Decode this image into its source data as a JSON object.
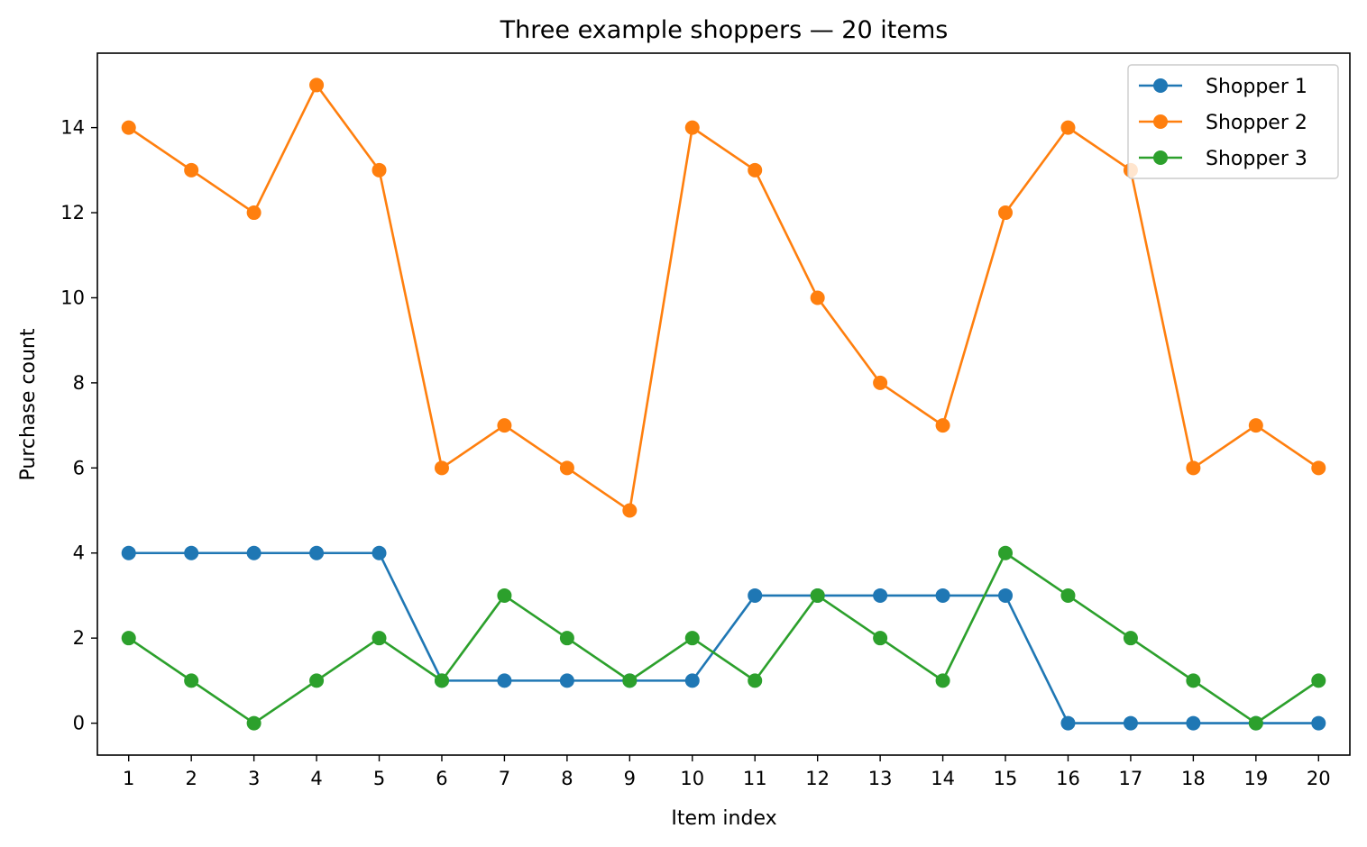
{
  "chart_data": {
    "type": "line",
    "title": "Three example shoppers — 20 items",
    "xlabel": "Item index",
    "ylabel": "Purchase count",
    "x": [
      1,
      2,
      3,
      4,
      5,
      6,
      7,
      8,
      9,
      10,
      11,
      12,
      13,
      14,
      15,
      16,
      17,
      18,
      19,
      20
    ],
    "xlim": [
      0.5,
      20.5
    ],
    "ylim": [
      -0.75,
      15.75
    ],
    "yticks": [
      0,
      2,
      4,
      6,
      8,
      10,
      12,
      14
    ],
    "grid": false,
    "legend_position": "top-right",
    "series": [
      {
        "name": "Shopper 1",
        "color": "#1f77b4",
        "values": [
          4,
          4,
          4,
          4,
          4,
          1,
          1,
          1,
          1,
          1,
          3,
          3,
          3,
          3,
          3,
          0,
          0,
          0,
          0,
          0
        ]
      },
      {
        "name": "Shopper 2",
        "color": "#ff7f0e",
        "values": [
          14,
          13,
          12,
          15,
          13,
          6,
          7,
          6,
          5,
          14,
          13,
          10,
          8,
          7,
          12,
          14,
          13,
          6,
          7,
          6
        ]
      },
      {
        "name": "Shopper 3",
        "color": "#2ca02c",
        "values": [
          2,
          1,
          0,
          1,
          2,
          1,
          3,
          2,
          1,
          2,
          1,
          3,
          2,
          1,
          4,
          3,
          2,
          1,
          0,
          1
        ]
      }
    ]
  }
}
